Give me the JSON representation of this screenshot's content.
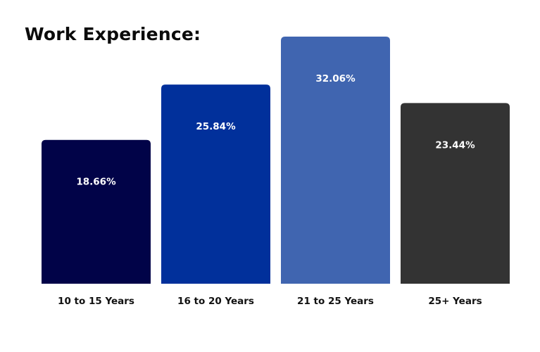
{
  "chart_data": {
    "type": "bar",
    "title": "Work Experience:",
    "categories": [
      "10 to 15 Years",
      "16 to 20 Years",
      "21 to 25 Years",
      "25+ Years"
    ],
    "values": [
      18.66,
      25.84,
      32.06,
      23.44
    ],
    "data_labels": [
      "18.66%",
      "25.84%",
      "32.06%",
      "23.44%"
    ],
    "colors": [
      "#010348",
      "#01309b",
      "#4065b0",
      "#333333"
    ],
    "xlabel": "",
    "ylabel": "",
    "ylim": [
      0,
      32.06
    ],
    "grid": false,
    "legend": "none"
  }
}
